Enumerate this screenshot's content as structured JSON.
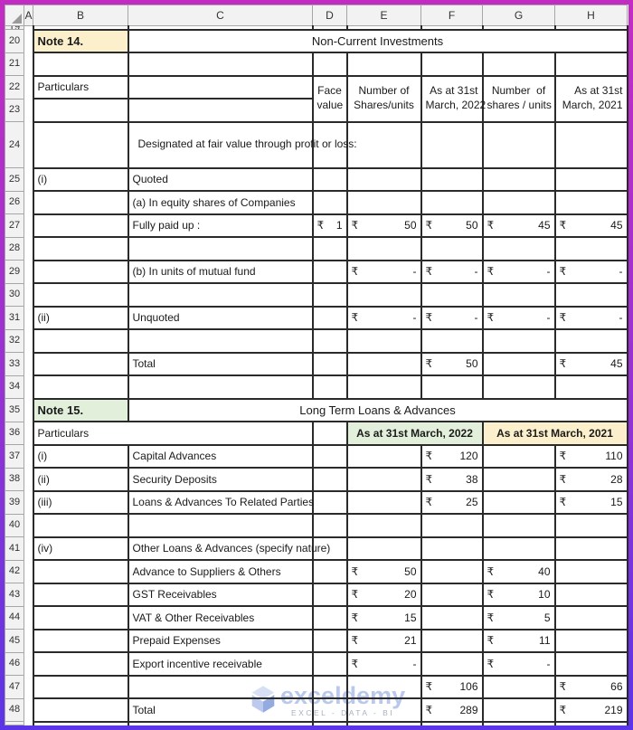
{
  "colors": {
    "frame_top": "#c32cc2",
    "frame_bottom": "#5b35e6",
    "sheet_bg": "#ffffff",
    "gutter_bg": "#f2f2f2",
    "gutter_border": "#a6a6a6",
    "grid_line": "#2a2a2a",
    "cell_text": "#1a1a1a",
    "note14_fill": "#fcf0cc",
    "note15_fill": "#e2efda",
    "watermark_brand": "#b7c6ec",
    "watermark_tagline": "#a3adbd"
  },
  "watermark": {
    "brand": "exceldemy",
    "tagline": "EXCEL - DATA - BI"
  },
  "grid": {
    "currency_symbol": "₹",
    "column_headers": [
      "A",
      "B",
      "C",
      "D",
      "E",
      "F",
      "G",
      "H"
    ],
    "rows": [
      {
        "n": 19,
        "partial": true,
        "cells": []
      },
      {
        "n": 20,
        "cells": [
          {
            "c": "B",
            "t": "Note 14.",
            "cls": "note yellow"
          },
          {
            "c": "C",
            "span": 6,
            "t": "Non-Current Investments",
            "cls": "title"
          }
        ]
      },
      {
        "n": 21,
        "cells": []
      },
      {
        "n": 22,
        "cells": [
          {
            "c": "B",
            "t": "Particulars"
          },
          {
            "c": "C",
            "t": ""
          },
          {
            "c": "D",
            "rowspan": 2,
            "lines": [
              "Face",
              "value"
            ],
            "cls": "center"
          },
          {
            "c": "E",
            "rowspan": 2,
            "lines": [
              "Number of",
              "Shares/units"
            ],
            "cls": "center"
          },
          {
            "c": "F",
            "rowspan": 2,
            "lines": [
              "As at 31st",
              "March, 2022"
            ],
            "cls": "right"
          },
          {
            "c": "G",
            "rowspan": 2,
            "lines": [
              "Number  of",
              "shares / units"
            ],
            "cls": "center"
          },
          {
            "c": "H",
            "rowspan": 2,
            "lines": [
              "As at 31st",
              "March, 2021"
            ],
            "cls": "right"
          }
        ]
      },
      {
        "n": 23,
        "cells": []
      },
      {
        "n": 24,
        "tall": true,
        "cells": [
          {
            "c": "C",
            "t": "Designated at fair value through profit or loss:",
            "cls": "wrap"
          }
        ]
      },
      {
        "n": 25,
        "cells": [
          {
            "c": "B",
            "t": "(i)"
          },
          {
            "c": "C",
            "t": "Quoted",
            "cls": "ind1"
          }
        ]
      },
      {
        "n": 26,
        "cells": [
          {
            "c": "C",
            "t": "(a) In equity shares of Companies",
            "cls": "ind1"
          }
        ]
      },
      {
        "n": 27,
        "cells": [
          {
            "c": "C",
            "t": "Fully paid up :",
            "cls": "ind2"
          },
          {
            "c": "D",
            "money": "1"
          },
          {
            "c": "E",
            "money": "50"
          },
          {
            "c": "F",
            "money": "50"
          },
          {
            "c": "G",
            "money": "45"
          },
          {
            "c": "H",
            "money": "45"
          }
        ]
      },
      {
        "n": 28,
        "cells": []
      },
      {
        "n": 29,
        "cells": [
          {
            "c": "C",
            "t": "(b) In units of mutual fund",
            "cls": "ind1"
          },
          {
            "c": "E",
            "money": "-"
          },
          {
            "c": "F",
            "money": "-"
          },
          {
            "c": "G",
            "money": "-"
          },
          {
            "c": "H",
            "money": "-"
          }
        ]
      },
      {
        "n": 30,
        "cells": []
      },
      {
        "n": 31,
        "cells": [
          {
            "c": "B",
            "t": "(ii)"
          },
          {
            "c": "C",
            "t": "Unquoted",
            "cls": "ind1"
          },
          {
            "c": "E",
            "money": "-"
          },
          {
            "c": "F",
            "money": "-"
          },
          {
            "c": "G",
            "money": "-"
          },
          {
            "c": "H",
            "money": "-"
          }
        ]
      },
      {
        "n": 32,
        "cells": []
      },
      {
        "n": 33,
        "cells": [
          {
            "c": "C",
            "t": "Total",
            "cls": "ind1"
          },
          {
            "c": "F",
            "money": "50"
          },
          {
            "c": "H",
            "money": "45"
          }
        ]
      },
      {
        "n": 34,
        "cells": []
      },
      {
        "n": 35,
        "cells": [
          {
            "c": "B",
            "t": "Note 15.",
            "cls": "note green"
          },
          {
            "c": "C",
            "span": 6,
            "t": "Long Term Loans & Advances",
            "cls": "title"
          }
        ]
      },
      {
        "n": 36,
        "cells": [
          {
            "c": "B",
            "span": 2,
            "t": "Particulars"
          },
          {
            "c": "D",
            "t": ""
          },
          {
            "c": "E",
            "span": 2,
            "t": "As at 31st March, 2022",
            "cls": "bold center green"
          },
          {
            "c": "G",
            "span": 2,
            "t": "As at 31st March, 2021",
            "cls": "bold center yellow"
          }
        ]
      },
      {
        "n": 37,
        "cells": [
          {
            "c": "B",
            "t": "(i)"
          },
          {
            "c": "C",
            "t": "Capital Advances"
          },
          {
            "c": "F",
            "money": "120"
          },
          {
            "c": "H",
            "money": "110"
          }
        ]
      },
      {
        "n": 38,
        "cells": [
          {
            "c": "B",
            "t": "(ii)"
          },
          {
            "c": "C",
            "t": "Security Deposits"
          },
          {
            "c": "F",
            "money": "38"
          },
          {
            "c": "H",
            "money": "28"
          }
        ]
      },
      {
        "n": 39,
        "cells": [
          {
            "c": "B",
            "t": "(iii)"
          },
          {
            "c": "C",
            "t": "Loans & Advances To Related Parties"
          },
          {
            "c": "F",
            "money": "25"
          },
          {
            "c": "H",
            "money": "15"
          }
        ]
      },
      {
        "n": 40,
        "cells": []
      },
      {
        "n": 41,
        "cells": [
          {
            "c": "B",
            "t": "(iv)"
          },
          {
            "c": "C",
            "t": "Other Loans & Advances (specify nature)"
          }
        ]
      },
      {
        "n": 42,
        "cells": [
          {
            "c": "C",
            "t": "Advance to Suppliers & Others"
          },
          {
            "c": "E",
            "money": "50"
          },
          {
            "c": "G",
            "money": "40"
          }
        ]
      },
      {
        "n": 43,
        "cells": [
          {
            "c": "C",
            "t": "GST Receivables"
          },
          {
            "c": "E",
            "money": "20"
          },
          {
            "c": "G",
            "money": "10"
          }
        ]
      },
      {
        "n": 44,
        "cells": [
          {
            "c": "C",
            "t": "VAT & Other Receivables"
          },
          {
            "c": "E",
            "money": "15"
          },
          {
            "c": "G",
            "money": "5"
          }
        ]
      },
      {
        "n": 45,
        "cells": [
          {
            "c": "C",
            "t": "Prepaid Expenses"
          },
          {
            "c": "E",
            "money": "21"
          },
          {
            "c": "G",
            "money": "11"
          }
        ]
      },
      {
        "n": 46,
        "cells": [
          {
            "c": "C",
            "t": "Export incentive receivable"
          },
          {
            "c": "E",
            "money": "-"
          },
          {
            "c": "G",
            "money": "-"
          }
        ]
      },
      {
        "n": 47,
        "cells": [
          {
            "c": "F",
            "money": "106"
          },
          {
            "c": "H",
            "money": "66"
          }
        ]
      },
      {
        "n": 48,
        "cells": [
          {
            "c": "C",
            "t": "Total"
          },
          {
            "c": "F",
            "money": "289"
          },
          {
            "c": "H",
            "money": "219"
          }
        ]
      },
      {
        "partial": true,
        "cells": []
      }
    ]
  }
}
